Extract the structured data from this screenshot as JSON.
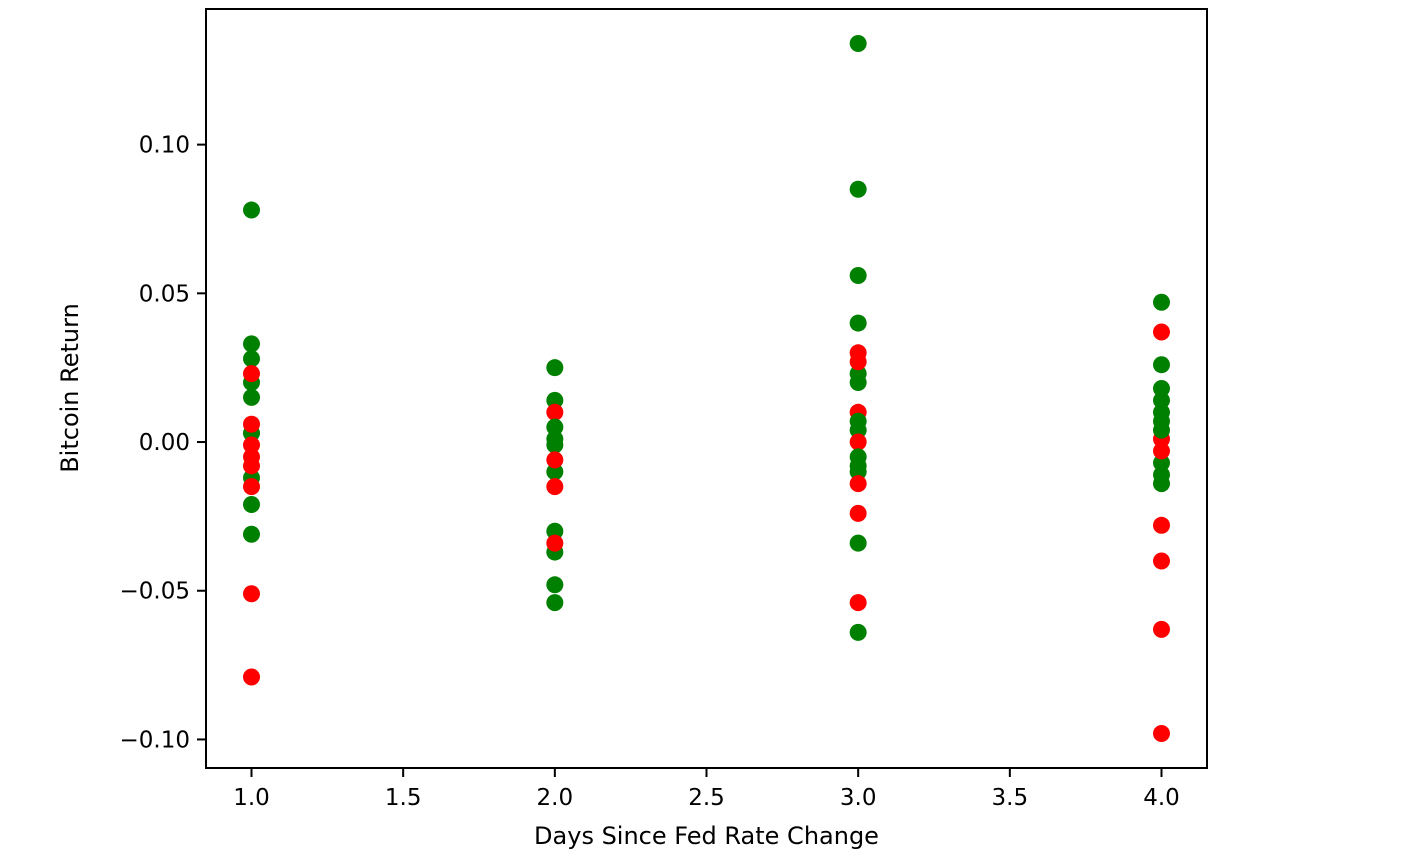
{
  "figure": {
    "background_color": "#ffffff",
    "border_color": "#000000"
  },
  "chart_data": {
    "type": "scatter",
    "title": "",
    "xlabel": "Days Since Fed Rate Change",
    "ylabel": "Bitcoin Return",
    "xlim": [
      0.85,
      4.15
    ],
    "ylim": [
      -0.1096,
      0.1456
    ],
    "grid": false,
    "legend": null,
    "x_ticks": {
      "values": [
        1.0,
        1.5,
        2.0,
        2.5,
        3.0,
        3.5,
        4.0
      ],
      "labels": [
        "1.0",
        "1.5",
        "2.0",
        "2.5",
        "3.0",
        "3.5",
        "4.0"
      ]
    },
    "y_ticks": {
      "values": [
        0.1,
        0.05,
        0.0,
        -0.05,
        -0.1
      ],
      "labels": [
        "0.10",
        "0.05",
        "0.00",
        "−0.05",
        "−0.10"
      ]
    },
    "colors": {
      "green": "#008000",
      "red": "#ff0000"
    },
    "series": [
      {
        "name": "green",
        "color": "#008000",
        "x": [
          1,
          1,
          1,
          1,
          1,
          1,
          1,
          1,
          1,
          2,
          2,
          2,
          2,
          2,
          2,
          2,
          2,
          2,
          2,
          3,
          3,
          3,
          3,
          3,
          3,
          3,
          3,
          3,
          3,
          3,
          3,
          3,
          4,
          4,
          4,
          4,
          4,
          4,
          4,
          4,
          4,
          4
        ],
        "y": [
          0.078,
          0.033,
          0.028,
          0.02,
          0.015,
          0.003,
          -0.012,
          -0.021,
          -0.031,
          0.025,
          0.014,
          0.005,
          0.001,
          -0.001,
          -0.01,
          -0.03,
          -0.037,
          -0.048,
          -0.054,
          0.134,
          0.085,
          0.056,
          0.04,
          0.023,
          0.02,
          0.007,
          0.004,
          -0.005,
          -0.008,
          -0.01,
          -0.034,
          -0.064,
          0.047,
          0.026,
          0.018,
          0.014,
          0.01,
          0.007,
          0.004,
          -0.007,
          -0.011,
          -0.014
        ]
      },
      {
        "name": "red",
        "color": "#ff0000",
        "x": [
          1,
          1,
          1,
          1,
          1,
          1,
          1,
          1,
          2,
          2,
          2,
          2,
          3,
          3,
          3,
          3,
          3,
          3,
          3,
          4,
          4,
          4,
          4,
          4,
          4,
          4
        ],
        "y": [
          0.023,
          0.006,
          -0.001,
          -0.005,
          -0.008,
          -0.015,
          -0.051,
          -0.079,
          0.01,
          -0.006,
          -0.015,
          -0.034,
          0.03,
          0.027,
          0.01,
          0.0,
          -0.014,
          -0.024,
          -0.054,
          0.037,
          0.001,
          -0.003,
          -0.028,
          -0.04,
          -0.063,
          -0.098
        ]
      }
    ],
    "points_draw_order": [
      {
        "x": 1,
        "y": 0.078,
        "c": "green"
      },
      {
        "x": 1,
        "y": 0.033,
        "c": "green"
      },
      {
        "x": 1,
        "y": 0.028,
        "c": "green"
      },
      {
        "x": 1,
        "y": 0.02,
        "c": "green"
      },
      {
        "x": 1,
        "y": 0.023,
        "c": "red"
      },
      {
        "x": 1,
        "y": 0.015,
        "c": "green"
      },
      {
        "x": 1,
        "y": 0.003,
        "c": "green"
      },
      {
        "x": 1,
        "y": 0.006,
        "c": "red"
      },
      {
        "x": 1,
        "y": -0.001,
        "c": "red"
      },
      {
        "x": 1,
        "y": -0.005,
        "c": "red"
      },
      {
        "x": 1,
        "y": -0.012,
        "c": "green"
      },
      {
        "x": 1,
        "y": -0.008,
        "c": "red"
      },
      {
        "x": 1,
        "y": -0.015,
        "c": "red"
      },
      {
        "x": 1,
        "y": -0.021,
        "c": "green"
      },
      {
        "x": 1,
        "y": -0.031,
        "c": "green"
      },
      {
        "x": 1,
        "y": -0.051,
        "c": "red"
      },
      {
        "x": 1,
        "y": -0.079,
        "c": "red"
      },
      {
        "x": 2,
        "y": 0.025,
        "c": "green"
      },
      {
        "x": 2,
        "y": 0.014,
        "c": "green"
      },
      {
        "x": 2,
        "y": 0.01,
        "c": "red"
      },
      {
        "x": 2,
        "y": 0.005,
        "c": "green"
      },
      {
        "x": 2,
        "y": 0.001,
        "c": "green"
      },
      {
        "x": 2,
        "y": -0.001,
        "c": "green"
      },
      {
        "x": 2,
        "y": -0.01,
        "c": "green"
      },
      {
        "x": 2,
        "y": -0.006,
        "c": "red"
      },
      {
        "x": 2,
        "y": -0.015,
        "c": "red"
      },
      {
        "x": 2,
        "y": -0.03,
        "c": "green"
      },
      {
        "x": 2,
        "y": -0.037,
        "c": "green"
      },
      {
        "x": 2,
        "y": -0.034,
        "c": "red"
      },
      {
        "x": 2,
        "y": -0.048,
        "c": "green"
      },
      {
        "x": 2,
        "y": -0.054,
        "c": "green"
      },
      {
        "x": 3,
        "y": 0.134,
        "c": "green"
      },
      {
        "x": 3,
        "y": 0.085,
        "c": "green"
      },
      {
        "x": 3,
        "y": 0.056,
        "c": "green"
      },
      {
        "x": 3,
        "y": 0.04,
        "c": "green"
      },
      {
        "x": 3,
        "y": 0.023,
        "c": "green"
      },
      {
        "x": 3,
        "y": 0.03,
        "c": "red"
      },
      {
        "x": 3,
        "y": 0.027,
        "c": "red"
      },
      {
        "x": 3,
        "y": 0.02,
        "c": "green"
      },
      {
        "x": 3,
        "y": 0.01,
        "c": "red"
      },
      {
        "x": 3,
        "y": 0.007,
        "c": "green"
      },
      {
        "x": 3,
        "y": 0.004,
        "c": "green"
      },
      {
        "x": 3,
        "y": 0.0,
        "c": "red"
      },
      {
        "x": 3,
        "y": -0.005,
        "c": "green"
      },
      {
        "x": 3,
        "y": -0.008,
        "c": "green"
      },
      {
        "x": 3,
        "y": -0.01,
        "c": "green"
      },
      {
        "x": 3,
        "y": -0.014,
        "c": "red"
      },
      {
        "x": 3,
        "y": -0.024,
        "c": "red"
      },
      {
        "x": 3,
        "y": -0.034,
        "c": "green"
      },
      {
        "x": 3,
        "y": -0.054,
        "c": "red"
      },
      {
        "x": 3,
        "y": -0.064,
        "c": "green"
      },
      {
        "x": 4,
        "y": 0.047,
        "c": "green"
      },
      {
        "x": 4,
        "y": 0.037,
        "c": "red"
      },
      {
        "x": 4,
        "y": 0.026,
        "c": "green"
      },
      {
        "x": 4,
        "y": 0.018,
        "c": "green"
      },
      {
        "x": 4,
        "y": 0.014,
        "c": "green"
      },
      {
        "x": 4,
        "y": 0.01,
        "c": "green"
      },
      {
        "x": 4,
        "y": 0.001,
        "c": "red"
      },
      {
        "x": 4,
        "y": 0.007,
        "c": "green"
      },
      {
        "x": 4,
        "y": 0.004,
        "c": "green"
      },
      {
        "x": 4,
        "y": -0.007,
        "c": "green"
      },
      {
        "x": 4,
        "y": -0.011,
        "c": "green"
      },
      {
        "x": 4,
        "y": -0.014,
        "c": "green"
      },
      {
        "x": 4,
        "y": -0.003,
        "c": "red"
      },
      {
        "x": 4,
        "y": -0.028,
        "c": "red"
      },
      {
        "x": 4,
        "y": -0.04,
        "c": "red"
      },
      {
        "x": 4,
        "y": -0.063,
        "c": "red"
      },
      {
        "x": 4,
        "y": -0.098,
        "c": "red"
      }
    ]
  }
}
